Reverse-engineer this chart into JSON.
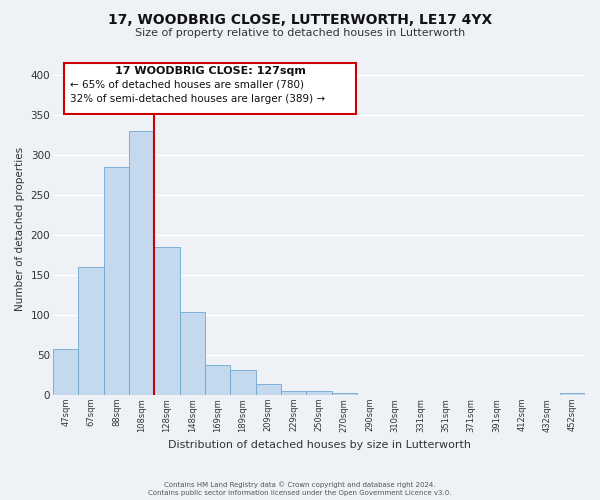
{
  "title": "17, WOODBRIG CLOSE, LUTTERWORTH, LE17 4YX",
  "subtitle": "Size of property relative to detached houses in Lutterworth",
  "xlabel": "Distribution of detached houses by size in Lutterworth",
  "ylabel": "Number of detached properties",
  "bar_color": "#c5d9ee",
  "bar_edge_color": "#6fa8d0",
  "background_color": "#eef2f7",
  "grid_color": "#ffffff",
  "bin_labels": [
    "47sqm",
    "67sqm",
    "88sqm",
    "108sqm",
    "128sqm",
    "148sqm",
    "169sqm",
    "189sqm",
    "209sqm",
    "229sqm",
    "250sqm",
    "270sqm",
    "290sqm",
    "310sqm",
    "331sqm",
    "351sqm",
    "371sqm",
    "391sqm",
    "412sqm",
    "432sqm",
    "452sqm"
  ],
  "bar_heights": [
    57,
    160,
    284,
    329,
    185,
    103,
    37,
    31,
    14,
    5,
    5,
    3,
    0,
    0,
    0,
    0,
    0,
    0,
    0,
    0,
    2
  ],
  "vline_color": "#cc0000",
  "ylim": [
    0,
    415
  ],
  "yticks": [
    0,
    50,
    100,
    150,
    200,
    250,
    300,
    350,
    400
  ],
  "annotation_title": "17 WOODBRIG CLOSE: 127sqm",
  "annotation_line1": "← 65% of detached houses are smaller (780)",
  "annotation_line2": "32% of semi-detached houses are larger (389) →",
  "footer1": "Contains HM Land Registry data © Crown copyright and database right 2024.",
  "footer2": "Contains public sector information licensed under the Open Government Licence v3.0."
}
